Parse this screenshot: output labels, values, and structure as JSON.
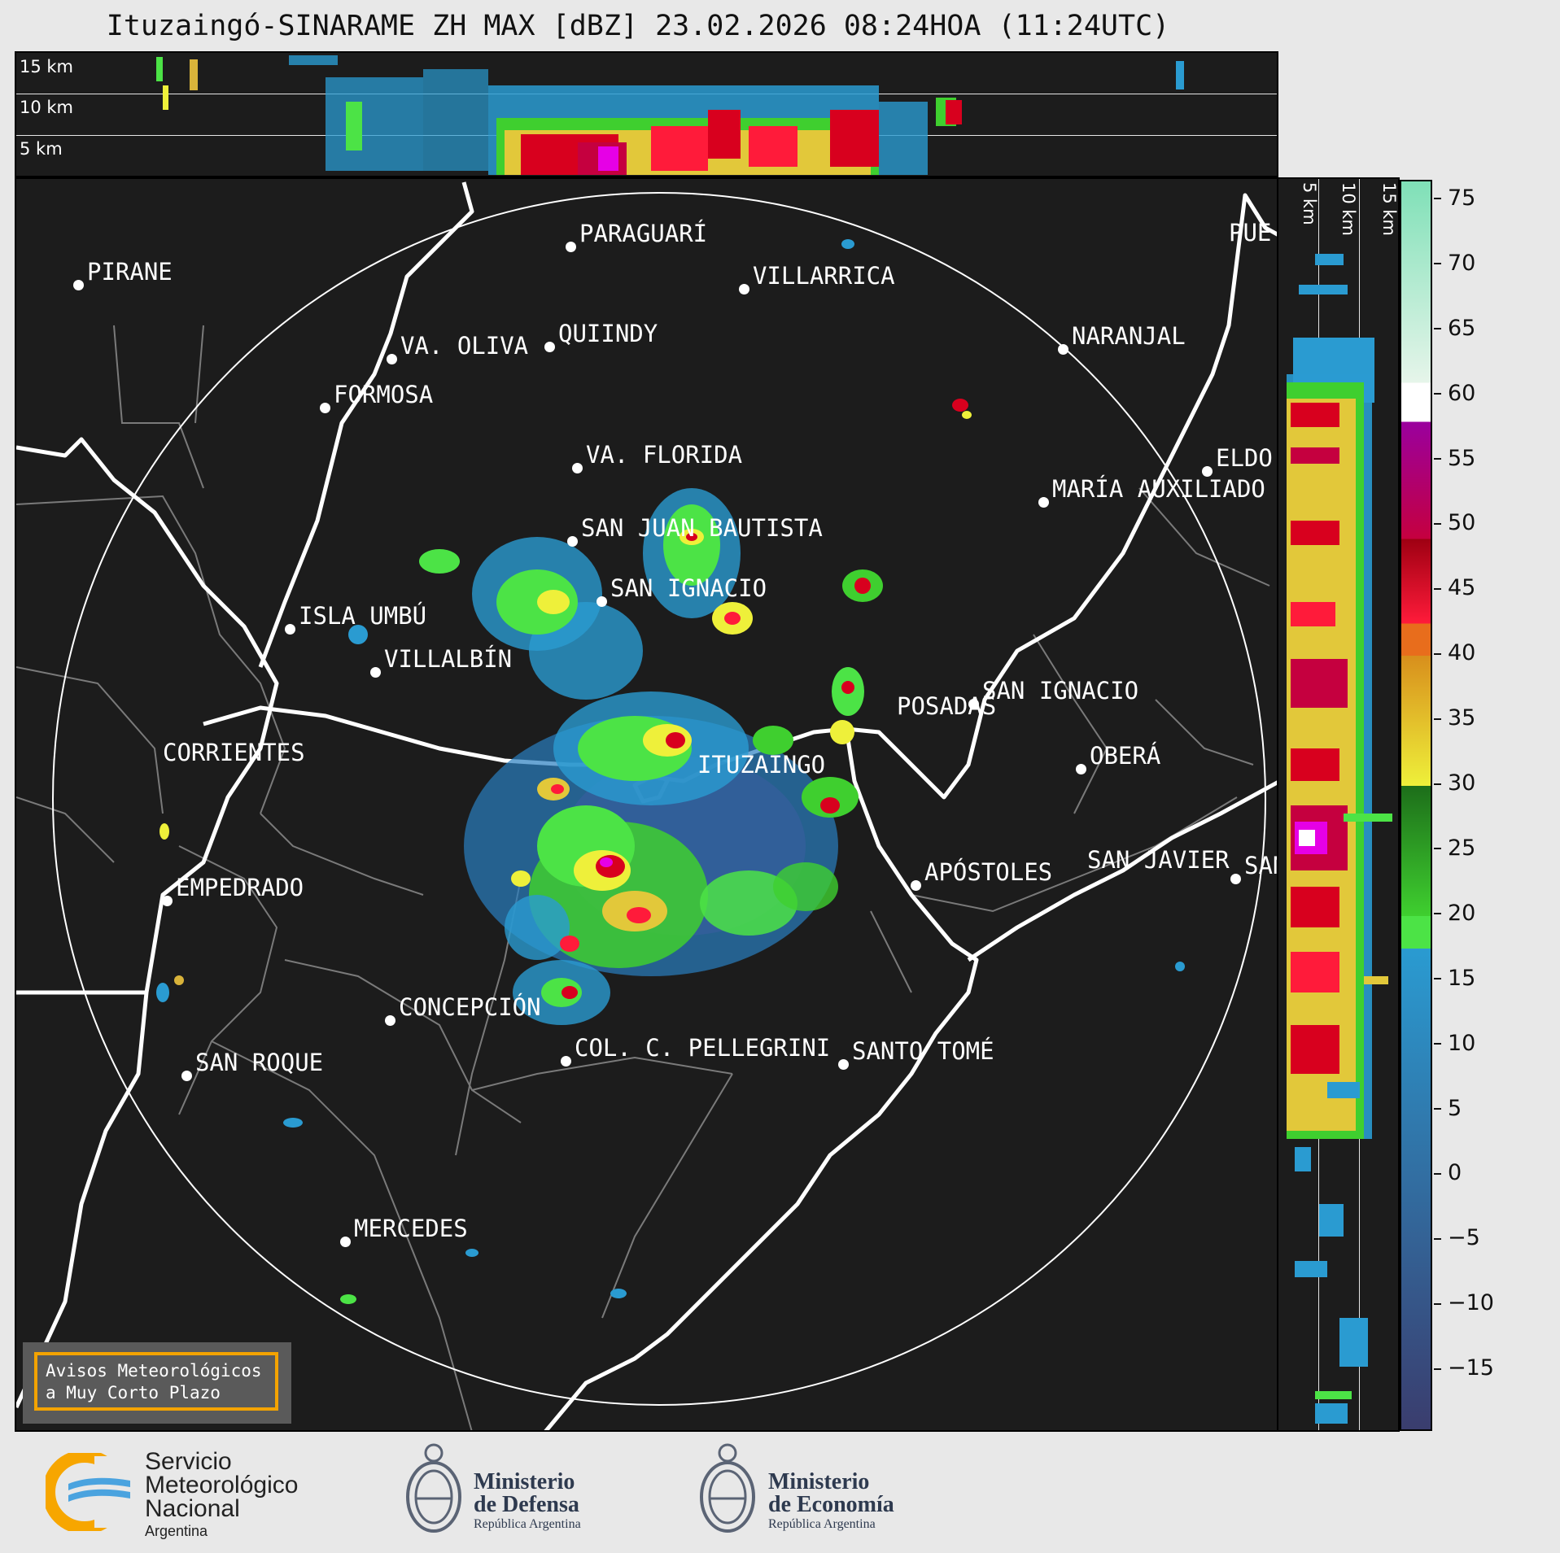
{
  "title": "Ituzaingó-SINARAME ZH MAX [dBZ] 23.02.2026 08:24HOA (11:24UTC)",
  "top_cross_section": {
    "height_labels": [
      "15 km",
      "10 km",
      "5 km"
    ]
  },
  "right_cross_section": {
    "height_labels": [
      "5 km",
      "10 km",
      "15 km"
    ]
  },
  "colorbar": {
    "unit": "dBZ",
    "ticks": [
      "75",
      "70",
      "65",
      "60",
      "55",
      "50",
      "45",
      "40",
      "35",
      "30",
      "25",
      "20",
      "15",
      "10",
      "5",
      "0",
      "−5",
      "−10",
      "−15"
    ],
    "range": [
      -19.5,
      76.5
    ],
    "colors": [
      {
        "from": -19.5,
        "to": 17.5,
        "start": "#3a3d6e",
        "end": "#2a9bd1"
      },
      {
        "from": 17.5,
        "to": 20,
        "color": "#4ce346"
      },
      {
        "from": 20,
        "to": 30,
        "start": "#3fcf2f",
        "end": "#1d6e1a"
      },
      {
        "from": 30,
        "to": 40,
        "start": "#eef03a",
        "end": "#d88f1c"
      },
      {
        "from": 40,
        "to": 42.5,
        "color": "#e86d1c"
      },
      {
        "from": 42.5,
        "to": 49,
        "start": "#ff1b3a",
        "end": "#9e0012"
      },
      {
        "from": 49,
        "to": 58,
        "start": "#c5003f",
        "end": "#9a009e"
      },
      {
        "from": 58,
        "to": 61,
        "color": "#ffffff"
      },
      {
        "from": 61,
        "to": 76.5,
        "start": "#e6f5ea",
        "end": "#7fe0b7"
      }
    ]
  },
  "map": {
    "places": [
      {
        "name": "PARAGUARÍ"
      },
      {
        "name": "VILLARRICA"
      },
      {
        "name": "PIRANE"
      },
      {
        "name": "QUIINDY"
      },
      {
        "name": "VA. OLIVA"
      },
      {
        "name": "FORMOSA"
      },
      {
        "name": "NARANJAL"
      },
      {
        "name": "PUE"
      },
      {
        "name": "ELDO"
      },
      {
        "name": "VA. FLORIDA"
      },
      {
        "name": "MARÍA AUXILIADO"
      },
      {
        "name": "SAN JUAN BAUTISTA"
      },
      {
        "name": "SAN IGNACIO"
      },
      {
        "name": "ISLA UMBÚ"
      },
      {
        "name": "VILLALBÍN"
      },
      {
        "name": "SAN IGNACIO"
      },
      {
        "name": "POSADAS"
      },
      {
        "name": "CORRIENTES"
      },
      {
        "name": "ITUZAINGO"
      },
      {
        "name": "OBERÁ"
      },
      {
        "name": "APÓSTOLES"
      },
      {
        "name": "SAN JAVIER"
      },
      {
        "name": "SAN"
      },
      {
        "name": "EMPEDRADO"
      },
      {
        "name": "CONCEPCIÓN"
      },
      {
        "name": "COL. C. PELLEGRINI"
      },
      {
        "name": "SANTO TOMÉ"
      },
      {
        "name": "SAN ROQUE"
      },
      {
        "name": "MERCEDES"
      }
    ]
  },
  "avisos": {
    "line1": "Avisos Meteorológicos",
    "line2": "a Muy Corto Plazo"
  },
  "footer": {
    "smn": {
      "line1": "Servicio",
      "line2": "Meteorológico",
      "line3": "Nacional",
      "country": "Argentina"
    },
    "defensa": {
      "line1": "Ministerio",
      "line2": "de Defensa",
      "sub": "República Argentina"
    },
    "economia": {
      "line1": "Ministerio",
      "line2": "de Economía",
      "sub": "República Argentina"
    }
  }
}
